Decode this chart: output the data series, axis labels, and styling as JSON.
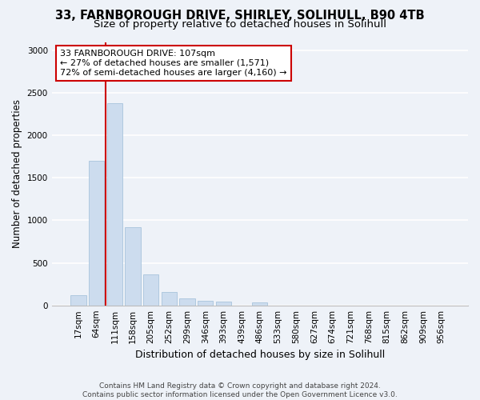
{
  "title1": "33, FARNBOROUGH DRIVE, SHIRLEY, SOLIHULL, B90 4TB",
  "title2": "Size of property relative to detached houses in Solihull",
  "xlabel": "Distribution of detached houses by size in Solihull",
  "ylabel": "Number of detached properties",
  "footer1": "Contains HM Land Registry data © Crown copyright and database right 2024.",
  "footer2": "Contains public sector information licensed under the Open Government Licence v3.0.",
  "bar_labels": [
    "17sqm",
    "64sqm",
    "111sqm",
    "158sqm",
    "205sqm",
    "252sqm",
    "299sqm",
    "346sqm",
    "393sqm",
    "439sqm",
    "486sqm",
    "533sqm",
    "580sqm",
    "627sqm",
    "674sqm",
    "721sqm",
    "768sqm",
    "815sqm",
    "862sqm",
    "909sqm",
    "956sqm"
  ],
  "bar_values": [
    120,
    1700,
    2380,
    920,
    360,
    155,
    85,
    55,
    40,
    0,
    35,
    0,
    0,
    0,
    0,
    0,
    0,
    0,
    0,
    0,
    0
  ],
  "bar_color": "#ccdcee",
  "bar_edge_color": "#a8c4dc",
  "ylim": [
    0,
    3100
  ],
  "yticks": [
    0,
    500,
    1000,
    1500,
    2000,
    2500,
    3000
  ],
  "vline_x_idx": 2,
  "vline_color": "#cc0000",
  "annotation_text": "33 FARNBOROUGH DRIVE: 107sqm\n← 27% of detached houses are smaller (1,571)\n72% of semi-detached houses are larger (4,160) →",
  "annotation_box_color": "#ffffff",
  "annotation_box_edgecolor": "#cc0000",
  "background_color": "#eef2f8",
  "grid_color": "#ffffff",
  "title1_fontsize": 10.5,
  "title2_fontsize": 9.5,
  "xlabel_fontsize": 9,
  "ylabel_fontsize": 8.5,
  "tick_fontsize": 7.5,
  "annotation_fontsize": 8
}
